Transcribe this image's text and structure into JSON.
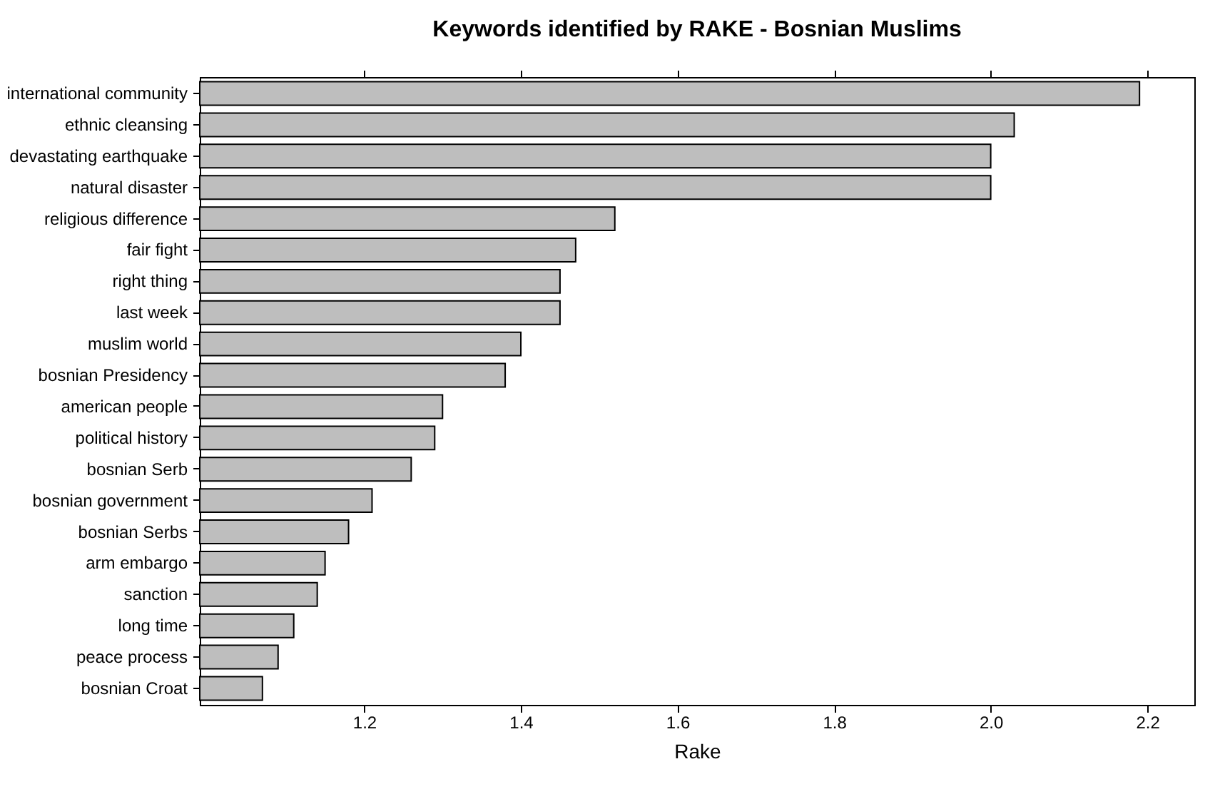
{
  "chart_data": {
    "type": "bar",
    "orientation": "horizontal",
    "title": "Keywords identified by RAKE - Bosnian Muslims",
    "xlabel": "Rake",
    "categories": [
      "international community",
      "ethnic cleansing",
      "devastating earthquake",
      "natural disaster",
      "religious difference",
      "fair fight",
      "right thing",
      "last week",
      "muslim world",
      "bosnian Presidency",
      "american people",
      "political history",
      "bosnian Serb",
      "bosnian government",
      "bosnian Serbs",
      "arm embargo",
      "sanction",
      "long time",
      "peace process",
      "bosnian Croat"
    ],
    "values": [
      2.19,
      2.03,
      2.0,
      2.0,
      1.52,
      1.47,
      1.45,
      1.45,
      1.4,
      1.38,
      1.3,
      1.29,
      1.26,
      1.21,
      1.18,
      1.15,
      1.14,
      1.11,
      1.09,
      1.07
    ],
    "color": "#bebebe",
    "xlim": [
      0.99,
      2.26
    ],
    "xticks": [
      1.2,
      1.4,
      1.6,
      1.8,
      {
        "value": 2,
        "label": "2.0"
      },
      2.2
    ],
    "grid": false
  }
}
